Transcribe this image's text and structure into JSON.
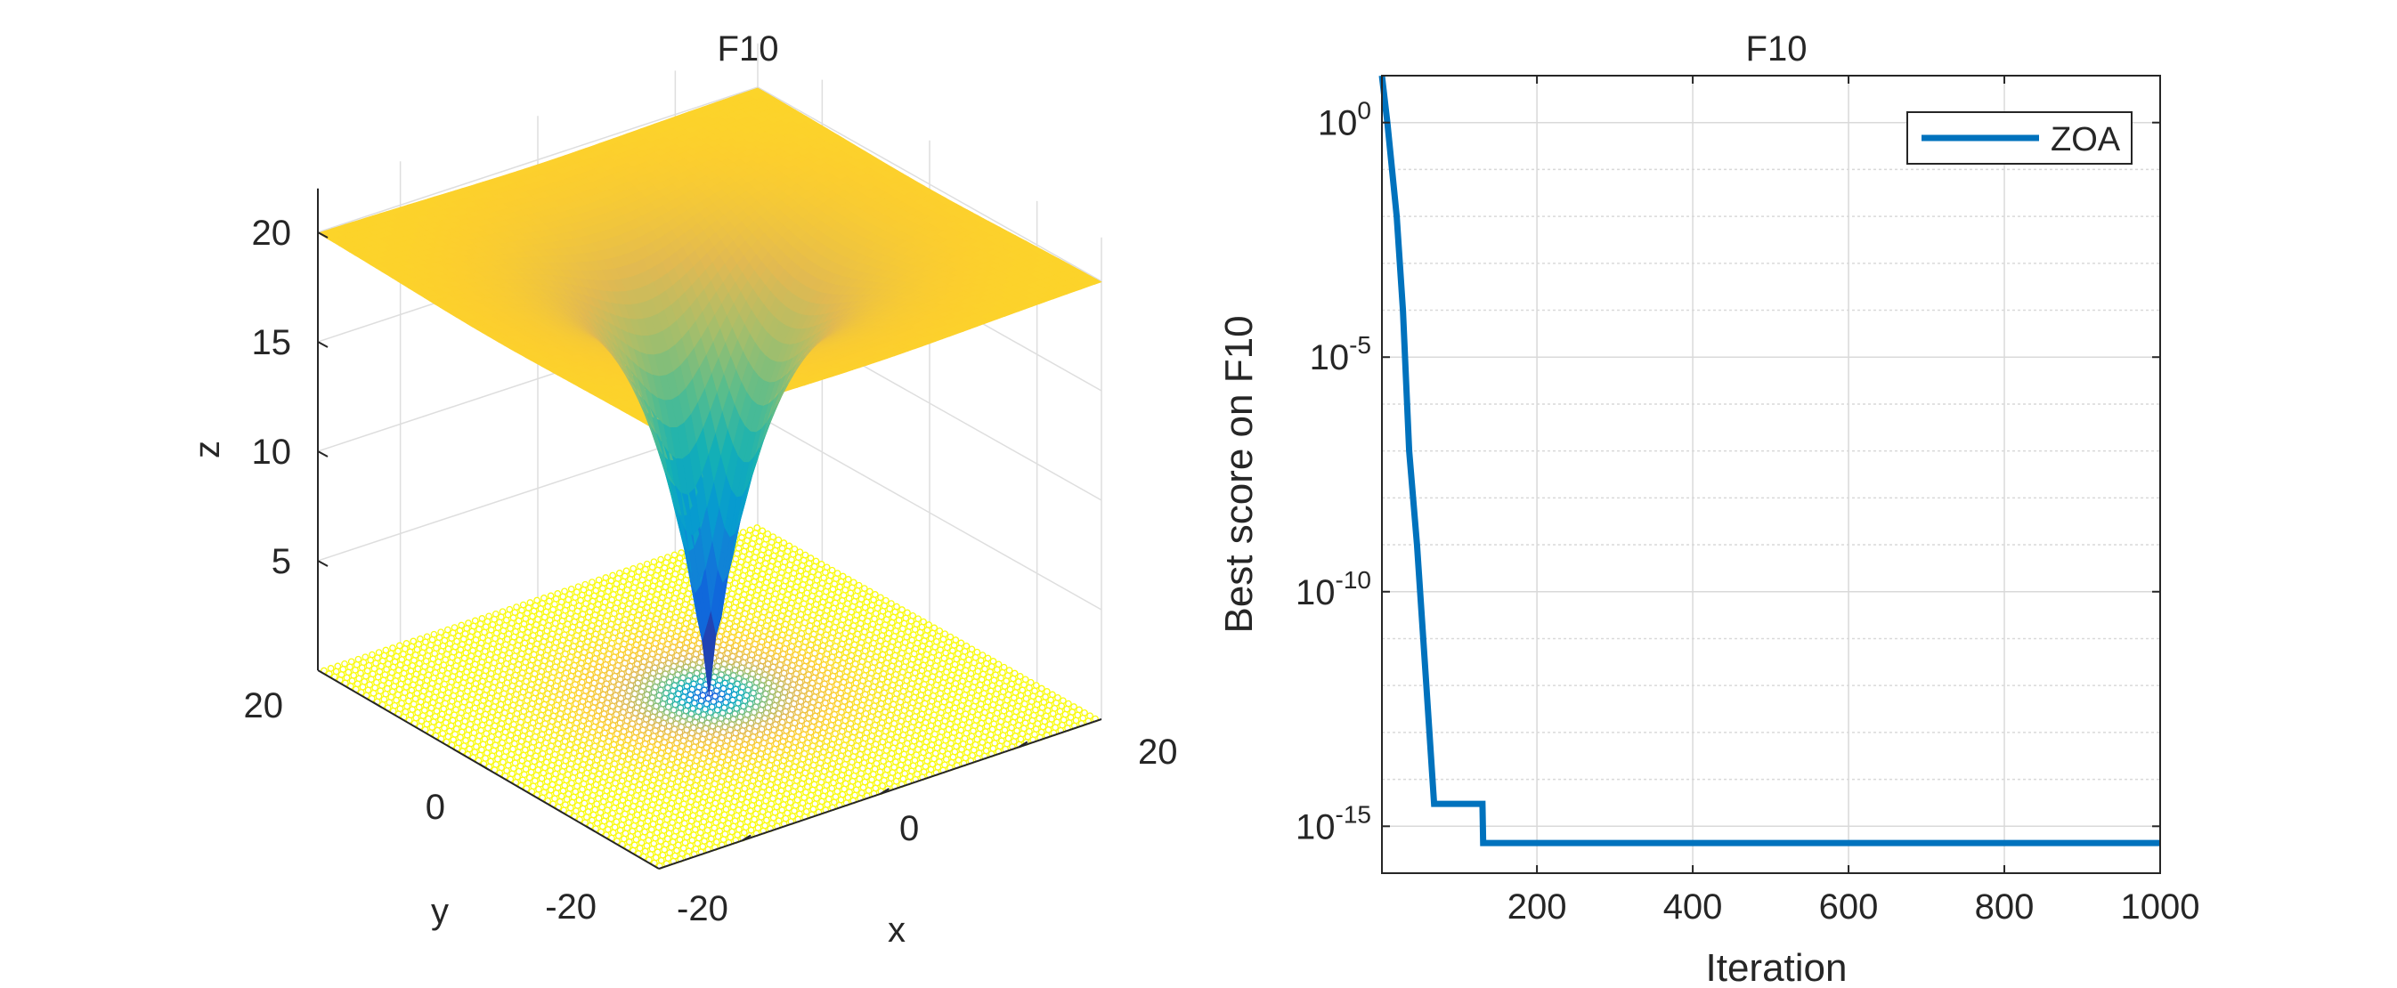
{
  "chart_data": [
    {
      "type": "surface",
      "title": "F10",
      "xlabel": "x",
      "ylabel": "y",
      "zlabel": "z",
      "xlim": [
        -32,
        32
      ],
      "ylim": [
        -32,
        32
      ],
      "zlim": [
        0,
        22
      ],
      "xticks": [
        "-20",
        "0",
        "20"
      ],
      "yticks": [
        "-20",
        "0",
        "20"
      ],
      "zticks": [
        "5",
        "10",
        "15",
        "20"
      ],
      "function": "Ackley",
      "colormap": "parula",
      "contour_on_floor": true,
      "grid": true
    },
    {
      "type": "line",
      "title": "F10",
      "xlabel": "Iteration",
      "ylabel": "Best score on F10",
      "yscale": "log",
      "xlim": [
        1,
        1000
      ],
      "ylim": [
        1e-16,
        10
      ],
      "xticks": [
        "200",
        "400",
        "600",
        "800",
        "1000"
      ],
      "yticks": [
        {
          "base": "10",
          "exp": "0"
        },
        {
          "base": "10",
          "exp": "-5"
        },
        {
          "base": "10",
          "exp": "-10"
        },
        {
          "base": "10",
          "exp": "-15"
        }
      ],
      "grid": true,
      "legend_position": "top-right",
      "series": [
        {
          "name": "ZOA",
          "color": "#0072bd",
          "points": [
            [
              1,
              10
            ],
            [
              8,
              1
            ],
            [
              20,
              0.01
            ],
            [
              28,
              0.0001
            ],
            [
              36,
              1e-07
            ],
            [
              46,
              1e-09
            ],
            [
              58,
              1e-12
            ],
            [
              68,
              3e-15
            ],
            [
              130,
              3e-15
            ],
            [
              131,
              4.4e-16
            ],
            [
              1000,
              4.4e-16
            ]
          ]
        }
      ]
    }
  ]
}
